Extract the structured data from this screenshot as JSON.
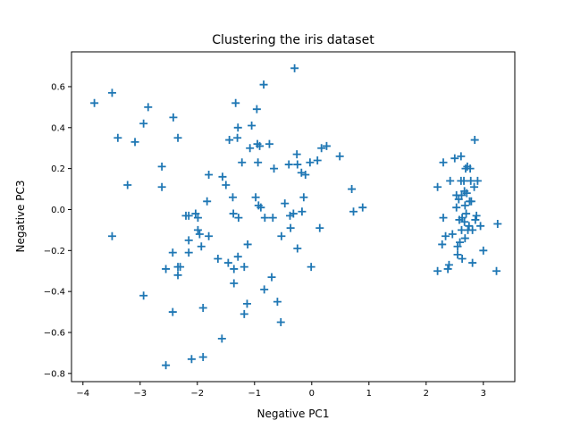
{
  "chart_data": {
    "type": "scatter",
    "title": "Clustering the iris dataset",
    "xlabel": "Negative PC1",
    "ylabel": "Negative PC3",
    "xlim": [
      -4.2,
      3.55
    ],
    "ylim": [
      -0.84,
      0.77
    ],
    "xticks": [
      -4,
      -3,
      -2,
      -1,
      0,
      1,
      2,
      3
    ],
    "yticks": [
      -0.8,
      -0.6,
      -0.4,
      -0.2,
      0.0,
      0.2,
      0.4,
      0.6
    ],
    "xtick_labels": [
      "−4",
      "−3",
      "−2",
      "−1",
      "0",
      "1",
      "2",
      "3"
    ],
    "ytick_labels": [
      "−0.8",
      "−0.6",
      "−0.4",
      "−0.2",
      "0.0",
      "0.2",
      "0.4",
      "0.6"
    ],
    "grid": false,
    "marker": "+",
    "color": "#1f77b4",
    "series": [
      {
        "points": [
          [
            -3.8,
            0.52
          ],
          [
            -3.49,
            0.57
          ],
          [
            -3.39,
            0.35
          ],
          [
            -3.49,
            -0.13
          ],
          [
            -3.22,
            0.12
          ],
          [
            -3.09,
            0.33
          ],
          [
            -2.94,
            0.42
          ],
          [
            -2.86,
            0.5
          ],
          [
            -2.94,
            -0.42
          ],
          [
            -2.62,
            0.21
          ],
          [
            -2.62,
            0.11
          ],
          [
            -2.55,
            -0.29
          ],
          [
            -2.55,
            -0.76
          ],
          [
            -2.43,
            -0.5
          ],
          [
            -2.43,
            -0.21
          ],
          [
            -2.42,
            0.45
          ],
          [
            -2.34,
            0.35
          ],
          [
            -2.34,
            -0.28
          ],
          [
            -2.34,
            -0.32
          ],
          [
            -2.3,
            -0.28
          ],
          [
            -2.2,
            -0.03
          ],
          [
            -2.15,
            -0.03
          ],
          [
            -2.15,
            -0.15
          ],
          [
            -2.15,
            -0.21
          ],
          [
            -2.1,
            -0.73
          ],
          [
            -2.03,
            -0.02
          ],
          [
            -1.99,
            -0.04
          ],
          [
            -1.99,
            -0.1
          ],
          [
            -1.96,
            -0.12
          ],
          [
            -1.93,
            -0.18
          ],
          [
            -1.9,
            -0.72
          ],
          [
            -1.9,
            -0.48
          ],
          [
            -1.83,
            0.04
          ],
          [
            -1.8,
            0.17
          ],
          [
            -1.8,
            -0.13
          ],
          [
            -1.64,
            -0.24
          ],
          [
            -1.57,
            -0.63
          ],
          [
            -1.56,
            0.16
          ],
          [
            -1.5,
            0.12
          ],
          [
            -1.46,
            -0.26
          ],
          [
            -1.44,
            0.34
          ],
          [
            -1.38,
            0.06
          ],
          [
            -1.37,
            -0.02
          ],
          [
            -1.36,
            -0.29
          ],
          [
            -1.36,
            -0.36
          ],
          [
            -1.33,
            0.52
          ],
          [
            -1.3,
            0.35
          ],
          [
            -1.29,
            0.4
          ],
          [
            -1.29,
            -0.23
          ],
          [
            -1.28,
            -0.04
          ],
          [
            -1.22,
            0.23
          ],
          [
            -1.18,
            -0.28
          ],
          [
            -1.18,
            -0.51
          ],
          [
            -1.13,
            -0.46
          ],
          [
            -1.12,
            -0.17
          ],
          [
            -1.08,
            0.3
          ],
          [
            -1.05,
            0.41
          ],
          [
            -0.98,
            0.06
          ],
          [
            -0.96,
            0.49
          ],
          [
            -0.95,
            0.32
          ],
          [
            -0.94,
            0.23
          ],
          [
            -0.93,
            0.02
          ],
          [
            -0.91,
            0.31
          ],
          [
            -0.89,
            0.01
          ],
          [
            -0.84,
            0.61
          ],
          [
            -0.83,
            -0.39
          ],
          [
            -0.82,
            -0.04
          ],
          [
            -0.74,
            0.32
          ],
          [
            -0.7,
            -0.33
          ],
          [
            -0.68,
            -0.04
          ],
          [
            -0.66,
            0.2
          ],
          [
            -0.6,
            -0.45
          ],
          [
            -0.54,
            -0.55
          ],
          [
            -0.53,
            -0.13
          ],
          [
            -0.47,
            0.03
          ],
          [
            -0.4,
            0.22
          ],
          [
            -0.38,
            -0.03
          ],
          [
            -0.37,
            -0.09
          ],
          [
            -0.32,
            -0.02
          ],
          [
            -0.3,
            0.69
          ],
          [
            -0.26,
            0.27
          ],
          [
            -0.25,
            0.22
          ],
          [
            -0.25,
            -0.19
          ],
          [
            -0.18,
            0.18
          ],
          [
            -0.17,
            -0.01
          ],
          [
            -0.14,
            0.06
          ],
          [
            -0.11,
            0.17
          ],
          [
            -0.03,
            0.23
          ],
          [
            -0.01,
            -0.28
          ],
          [
            0.1,
            0.24
          ],
          [
            0.14,
            -0.09
          ],
          [
            0.17,
            0.3
          ],
          [
            0.26,
            0.31
          ],
          [
            0.49,
            0.26
          ],
          [
            0.7,
            0.1
          ],
          [
            0.73,
            -0.01
          ],
          [
            0.89,
            0.01
          ]
        ]
      },
      {
        "points": [
          [
            2.2,
            0.11
          ],
          [
            2.2,
            -0.3
          ],
          [
            2.28,
            -0.17
          ],
          [
            2.3,
            0.23
          ],
          [
            2.3,
            -0.04
          ],
          [
            2.34,
            -0.13
          ],
          [
            2.38,
            -0.29
          ],
          [
            2.4,
            -0.27
          ],
          [
            2.42,
            0.14
          ],
          [
            2.46,
            -0.12
          ],
          [
            2.5,
            0.25
          ],
          [
            2.53,
            0.07
          ],
          [
            2.53,
            0.01
          ],
          [
            2.55,
            -0.18
          ],
          [
            2.55,
            -0.22
          ],
          [
            2.57,
            0.05
          ],
          [
            2.58,
            -0.05
          ],
          [
            2.59,
            -0.16
          ],
          [
            2.61,
            0.26
          ],
          [
            2.61,
            0.14
          ],
          [
            2.62,
            0.07
          ],
          [
            2.62,
            -0.1
          ],
          [
            2.63,
            -0.24
          ],
          [
            2.63,
            -0.04
          ],
          [
            2.66,
            0.14
          ],
          [
            2.67,
            0.09
          ],
          [
            2.67,
            -0.06
          ],
          [
            2.68,
            0.02
          ],
          [
            2.68,
            -0.14
          ],
          [
            2.69,
            0.2
          ],
          [
            2.7,
            -0.02
          ],
          [
            2.71,
            0.08
          ],
          [
            2.72,
            0.21
          ],
          [
            2.73,
            -0.1
          ],
          [
            2.75,
            -0.08
          ],
          [
            2.76,
            0.04
          ],
          [
            2.77,
            0.2
          ],
          [
            2.78,
            0.14
          ],
          [
            2.79,
            0.04
          ],
          [
            2.81,
            -0.1
          ],
          [
            2.81,
            -0.26
          ],
          [
            2.84,
            0.11
          ],
          [
            2.85,
            0.34
          ],
          [
            2.86,
            -0.05
          ],
          [
            2.88,
            -0.03
          ],
          [
            2.9,
            0.14
          ],
          [
            2.95,
            -0.08
          ],
          [
            3.0,
            -0.2
          ],
          [
            3.23,
            -0.3
          ],
          [
            3.25,
            -0.07
          ]
        ]
      }
    ]
  }
}
